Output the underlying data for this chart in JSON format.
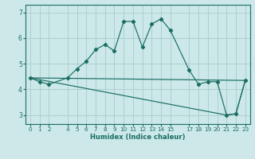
{
  "title": "",
  "xlabel": "Humidex (Indice chaleur)",
  "ylabel": "",
  "bg_color": "#cce8e8",
  "grid_color": "#aed0d0",
  "line_color": "#1a6e64",
  "xlim": [
    -0.5,
    23.5
  ],
  "ylim": [
    2.65,
    7.3
  ],
  "xticks": [
    0,
    1,
    2,
    4,
    5,
    6,
    7,
    8,
    9,
    10,
    11,
    12,
    13,
    14,
    15,
    17,
    18,
    19,
    20,
    21,
    22,
    23
  ],
  "yticks": [
    3,
    4,
    5,
    6,
    7
  ],
  "series1_x": [
    0,
    1,
    2,
    4,
    5,
    6,
    7,
    8,
    9,
    10,
    11,
    12,
    13,
    14,
    15,
    17,
    18,
    19,
    20,
    21,
    22,
    23
  ],
  "series1_y": [
    4.45,
    4.3,
    4.2,
    4.45,
    4.8,
    5.1,
    5.55,
    5.75,
    5.5,
    6.65,
    6.65,
    5.65,
    6.55,
    6.75,
    6.3,
    4.75,
    4.2,
    4.3,
    4.3,
    3.0,
    3.05,
    4.35
  ],
  "series2_x": [
    0,
    23
  ],
  "series2_y": [
    4.45,
    4.35
  ],
  "series3_x": [
    0,
    21,
    22,
    23
  ],
  "series3_y": [
    4.45,
    3.0,
    3.05,
    4.35
  ]
}
